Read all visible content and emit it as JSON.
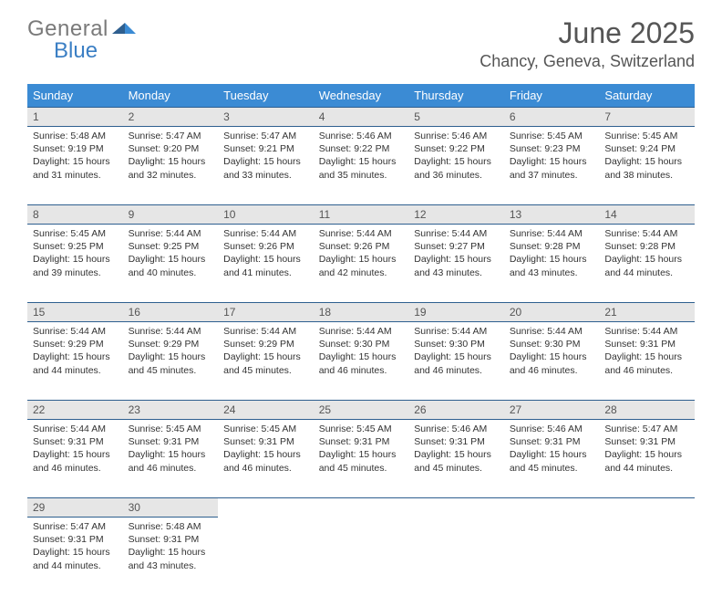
{
  "logo": {
    "part1": "General",
    "part2": "Blue"
  },
  "title": "June 2025",
  "location": "Chancy, Geneva, Switzerland",
  "colors": {
    "header_bg": "#3b8bd4",
    "header_text": "#ffffff",
    "daynum_bg": "#e6e6e6",
    "daynum_border": "#2e5f8f",
    "body_text": "#333333",
    "logo_gray": "#7a7a7a",
    "logo_blue": "#3b7fc4"
  },
  "weekdays": [
    "Sunday",
    "Monday",
    "Tuesday",
    "Wednesday",
    "Thursday",
    "Friday",
    "Saturday"
  ],
  "weeks": [
    [
      {
        "n": "1",
        "sr": "Sunrise: 5:48 AM",
        "ss": "Sunset: 9:19 PM",
        "dl": "Daylight: 15 hours and 31 minutes."
      },
      {
        "n": "2",
        "sr": "Sunrise: 5:47 AM",
        "ss": "Sunset: 9:20 PM",
        "dl": "Daylight: 15 hours and 32 minutes."
      },
      {
        "n": "3",
        "sr": "Sunrise: 5:47 AM",
        "ss": "Sunset: 9:21 PM",
        "dl": "Daylight: 15 hours and 33 minutes."
      },
      {
        "n": "4",
        "sr": "Sunrise: 5:46 AM",
        "ss": "Sunset: 9:22 PM",
        "dl": "Daylight: 15 hours and 35 minutes."
      },
      {
        "n": "5",
        "sr": "Sunrise: 5:46 AM",
        "ss": "Sunset: 9:22 PM",
        "dl": "Daylight: 15 hours and 36 minutes."
      },
      {
        "n": "6",
        "sr": "Sunrise: 5:45 AM",
        "ss": "Sunset: 9:23 PM",
        "dl": "Daylight: 15 hours and 37 minutes."
      },
      {
        "n": "7",
        "sr": "Sunrise: 5:45 AM",
        "ss": "Sunset: 9:24 PM",
        "dl": "Daylight: 15 hours and 38 minutes."
      }
    ],
    [
      {
        "n": "8",
        "sr": "Sunrise: 5:45 AM",
        "ss": "Sunset: 9:25 PM",
        "dl": "Daylight: 15 hours and 39 minutes."
      },
      {
        "n": "9",
        "sr": "Sunrise: 5:44 AM",
        "ss": "Sunset: 9:25 PM",
        "dl": "Daylight: 15 hours and 40 minutes."
      },
      {
        "n": "10",
        "sr": "Sunrise: 5:44 AM",
        "ss": "Sunset: 9:26 PM",
        "dl": "Daylight: 15 hours and 41 minutes."
      },
      {
        "n": "11",
        "sr": "Sunrise: 5:44 AM",
        "ss": "Sunset: 9:26 PM",
        "dl": "Daylight: 15 hours and 42 minutes."
      },
      {
        "n": "12",
        "sr": "Sunrise: 5:44 AM",
        "ss": "Sunset: 9:27 PM",
        "dl": "Daylight: 15 hours and 43 minutes."
      },
      {
        "n": "13",
        "sr": "Sunrise: 5:44 AM",
        "ss": "Sunset: 9:28 PM",
        "dl": "Daylight: 15 hours and 43 minutes."
      },
      {
        "n": "14",
        "sr": "Sunrise: 5:44 AM",
        "ss": "Sunset: 9:28 PM",
        "dl": "Daylight: 15 hours and 44 minutes."
      }
    ],
    [
      {
        "n": "15",
        "sr": "Sunrise: 5:44 AM",
        "ss": "Sunset: 9:29 PM",
        "dl": "Daylight: 15 hours and 44 minutes."
      },
      {
        "n": "16",
        "sr": "Sunrise: 5:44 AM",
        "ss": "Sunset: 9:29 PM",
        "dl": "Daylight: 15 hours and 45 minutes."
      },
      {
        "n": "17",
        "sr": "Sunrise: 5:44 AM",
        "ss": "Sunset: 9:29 PM",
        "dl": "Daylight: 15 hours and 45 minutes."
      },
      {
        "n": "18",
        "sr": "Sunrise: 5:44 AM",
        "ss": "Sunset: 9:30 PM",
        "dl": "Daylight: 15 hours and 46 minutes."
      },
      {
        "n": "19",
        "sr": "Sunrise: 5:44 AM",
        "ss": "Sunset: 9:30 PM",
        "dl": "Daylight: 15 hours and 46 minutes."
      },
      {
        "n": "20",
        "sr": "Sunrise: 5:44 AM",
        "ss": "Sunset: 9:30 PM",
        "dl": "Daylight: 15 hours and 46 minutes."
      },
      {
        "n": "21",
        "sr": "Sunrise: 5:44 AM",
        "ss": "Sunset: 9:31 PM",
        "dl": "Daylight: 15 hours and 46 minutes."
      }
    ],
    [
      {
        "n": "22",
        "sr": "Sunrise: 5:44 AM",
        "ss": "Sunset: 9:31 PM",
        "dl": "Daylight: 15 hours and 46 minutes."
      },
      {
        "n": "23",
        "sr": "Sunrise: 5:45 AM",
        "ss": "Sunset: 9:31 PM",
        "dl": "Daylight: 15 hours and 46 minutes."
      },
      {
        "n": "24",
        "sr": "Sunrise: 5:45 AM",
        "ss": "Sunset: 9:31 PM",
        "dl": "Daylight: 15 hours and 46 minutes."
      },
      {
        "n": "25",
        "sr": "Sunrise: 5:45 AM",
        "ss": "Sunset: 9:31 PM",
        "dl": "Daylight: 15 hours and 45 minutes."
      },
      {
        "n": "26",
        "sr": "Sunrise: 5:46 AM",
        "ss": "Sunset: 9:31 PM",
        "dl": "Daylight: 15 hours and 45 minutes."
      },
      {
        "n": "27",
        "sr": "Sunrise: 5:46 AM",
        "ss": "Sunset: 9:31 PM",
        "dl": "Daylight: 15 hours and 45 minutes."
      },
      {
        "n": "28",
        "sr": "Sunrise: 5:47 AM",
        "ss": "Sunset: 9:31 PM",
        "dl": "Daylight: 15 hours and 44 minutes."
      }
    ],
    [
      {
        "n": "29",
        "sr": "Sunrise: 5:47 AM",
        "ss": "Sunset: 9:31 PM",
        "dl": "Daylight: 15 hours and 44 minutes."
      },
      {
        "n": "30",
        "sr": "Sunrise: 5:48 AM",
        "ss": "Sunset: 9:31 PM",
        "dl": "Daylight: 15 hours and 43 minutes."
      },
      null,
      null,
      null,
      null,
      null
    ]
  ]
}
